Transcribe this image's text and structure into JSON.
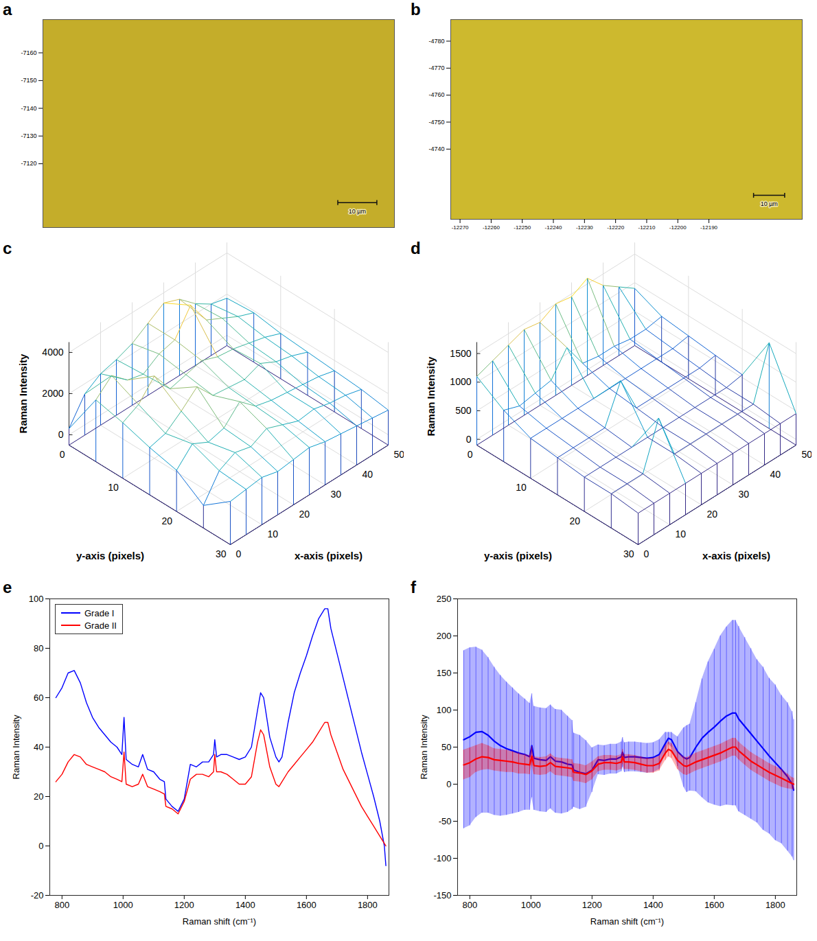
{
  "chart_data": [
    {
      "panel": "a",
      "type": "image",
      "color": "#c4ad2a",
      "xlim": [
        0,
        90
      ],
      "ylim": [
        -7172,
        -7097
      ],
      "yticks": [
        -7160,
        -7150,
        -7140,
        -7130,
        -7120
      ],
      "tick_labels": "y",
      "scale_bar": {
        "length": 10,
        "label": "10 µm"
      }
    },
    {
      "panel": "b",
      "type": "image",
      "color": "#cdb92e",
      "xlim": [
        -12273,
        -12160
      ],
      "ylim": [
        -4788,
        -4714
      ],
      "xticks": [
        -12270,
        -12260,
        -12250,
        -12240,
        -12230,
        -12220,
        -12210,
        -12200,
        -12190
      ],
      "yticks": [
        -4780,
        -4770,
        -4760,
        -4750,
        -4740
      ],
      "scale_bar": {
        "length": 10,
        "label": "10 µm"
      }
    },
    {
      "panel": "c",
      "type": "surface",
      "x": [
        0,
        5,
        10,
        15,
        20,
        25,
        30,
        35,
        40,
        45,
        50
      ],
      "y": [
        0,
        5,
        10,
        15,
        20,
        25,
        30
      ],
      "z": [
        [
          300,
          1500,
          2000,
          2200,
          2500,
          3000,
          3500,
          3200,
          2500,
          2000,
          1800
        ],
        [
          2500,
          3200,
          2500,
          2300,
          2800,
          3000,
          4200,
          3000,
          2600,
          2200,
          1900
        ],
        [
          2200,
          2600,
          3500,
          2400,
          2600,
          2800,
          2500,
          2400,
          2200,
          2000,
          1700
        ],
        [
          1800,
          2000,
          2600,
          3300,
          2400,
          2300,
          2200,
          2500,
          2100,
          1900,
          1600
        ],
        [
          1500,
          2300,
          1900,
          2100,
          2900,
          2200,
          2000,
          1900,
          1800,
          1700,
          1500
        ],
        [
          600,
          1800,
          2200,
          2000,
          2400,
          2100,
          1800,
          1900,
          1700,
          1600,
          1400
        ],
        [
          1600,
          1700,
          1800,
          1600,
          1700,
          1800,
          1600,
          1500,
          1400,
          1300,
          1200
        ]
      ],
      "xlim": [
        0,
        50
      ],
      "ylim": [
        0,
        30
      ],
      "zlim": [
        -500,
        4500
      ],
      "xticks": [
        0,
        10,
        20,
        30,
        40,
        50
      ],
      "yticks": [
        0,
        10,
        20,
        30
      ],
      "zticks": [
        0,
        2000,
        4000
      ],
      "x_label": "x-axis (pixels)",
      "y_label": "y-axis (pixels)",
      "z_label": "Raman Intensity"
    },
    {
      "panel": "d",
      "type": "surface",
      "x": [
        0,
        5,
        10,
        15,
        20,
        25,
        30,
        35,
        40,
        45,
        50
      ],
      "y": [
        0,
        5,
        10,
        15,
        20,
        25,
        30
      ],
      "z": [
        [
          1100,
          1200,
          1300,
          1400,
          1350,
          1500,
          1450,
          1600,
          1300,
          1100,
          900
        ],
        [
          800,
          700,
          750,
          800,
          1200,
          750,
          700,
          700,
          650,
          650,
          700
        ],
        [
          600,
          600,
          600,
          600,
          600,
          600,
          600,
          600,
          600,
          600,
          650
        ],
        [
          550,
          550,
          550,
          550,
          1200,
          550,
          550,
          550,
          550,
          550,
          600
        ],
        [
          500,
          500,
          500,
          500,
          500,
          500,
          500,
          500,
          500,
          500,
          550
        ],
        [
          500,
          500,
          500,
          1300,
          500,
          500,
          500,
          500,
          500,
          500,
          1400
        ],
        [
          450,
          450,
          450,
          450,
          450,
          450,
          450,
          450,
          450,
          450,
          450
        ]
      ],
      "xlim": [
        0,
        50
      ],
      "ylim": [
        0,
        30
      ],
      "zlim": [
        -100,
        1700
      ],
      "xticks": [
        0,
        10,
        20,
        30,
        40,
        50
      ],
      "yticks": [
        0,
        10,
        20,
        30
      ],
      "zticks": [
        0,
        500,
        1000,
        1500
      ],
      "x_label": "x-axis (pixels)",
      "y_label": "y-axis (pixels)",
      "z_label": "Raman Intensity"
    },
    {
      "panel": "e",
      "type": "line",
      "x": [
        780,
        800,
        820,
        840,
        860,
        880,
        900,
        920,
        940,
        960,
        980,
        996,
        1003,
        1010,
        1030,
        1050,
        1064,
        1080,
        1100,
        1120,
        1135,
        1140,
        1160,
        1180,
        1200,
        1220,
        1240,
        1260,
        1280,
        1296,
        1300,
        1306,
        1320,
        1340,
        1360,
        1380,
        1400,
        1420,
        1440,
        1450,
        1460,
        1480,
        1500,
        1510,
        1520,
        1540,
        1560,
        1580,
        1600,
        1620,
        1640,
        1660,
        1670,
        1680,
        1700,
        1720,
        1740,
        1760,
        1780,
        1800,
        1820,
        1840,
        1855,
        1860
      ],
      "series": [
        {
          "name": "Grade I",
          "color": "#0000ff",
          "values": [
            60,
            64,
            70,
            71,
            66,
            58,
            52,
            48,
            45,
            42,
            40,
            37,
            52,
            35,
            33,
            32,
            37,
            31,
            30,
            27,
            26,
            19,
            16,
            14,
            19,
            33,
            32,
            34,
            34,
            37,
            43,
            36,
            37,
            37,
            36,
            35,
            36,
            40,
            55,
            62,
            60,
            44,
            36,
            34,
            36,
            50,
            62,
            70,
            77,
            85,
            92,
            96,
            96,
            88,
            78,
            68,
            58,
            48,
            38,
            29,
            20,
            10,
            0,
            -8
          ]
        },
        {
          "name": "Grade II",
          "color": "#ff0000",
          "values": [
            26,
            29,
            34,
            37,
            36,
            33,
            32,
            31,
            30,
            28,
            27,
            26,
            38,
            25,
            24,
            25,
            29,
            24,
            23,
            22,
            21,
            16,
            15,
            13,
            18,
            27,
            29,
            29,
            28,
            30,
            37,
            30,
            30,
            29,
            27,
            25,
            25,
            28,
            42,
            47,
            45,
            32,
            25,
            24,
            26,
            30,
            33,
            36,
            39,
            42,
            46,
            50,
            50,
            45,
            38,
            31,
            26,
            21,
            16,
            12,
            8,
            4,
            1,
            0
          ]
        }
      ],
      "xlim": [
        760,
        1870
      ],
      "ylim": [
        -20,
        100
      ],
      "xticks": [
        800,
        1000,
        1200,
        1400,
        1600,
        1800
      ],
      "yticks": [
        -20,
        0,
        20,
        40,
        60,
        80,
        100
      ],
      "x_label": "Raman shift (cm⁻¹)",
      "y_label": "Raman Intensity",
      "legend": "top-left"
    },
    {
      "panel": "f",
      "type": "line",
      "x": [
        780,
        800,
        820,
        840,
        860,
        880,
        900,
        920,
        940,
        960,
        980,
        996,
        1003,
        1010,
        1030,
        1050,
        1064,
        1080,
        1100,
        1120,
        1135,
        1140,
        1160,
        1180,
        1200,
        1220,
        1240,
        1260,
        1280,
        1296,
        1300,
        1306,
        1320,
        1340,
        1360,
        1380,
        1400,
        1420,
        1440,
        1450,
        1460,
        1480,
        1500,
        1510,
        1520,
        1540,
        1560,
        1580,
        1600,
        1620,
        1640,
        1660,
        1670,
        1680,
        1700,
        1720,
        1740,
        1760,
        1780,
        1800,
        1820,
        1840,
        1855,
        1860
      ],
      "series": [
        {
          "color": "#0000ff",
          "values": [
            60,
            64,
            70,
            71,
            66,
            58,
            52,
            48,
            45,
            42,
            40,
            37,
            52,
            35,
            33,
            32,
            37,
            31,
            30,
            27,
            26,
            19,
            16,
            14,
            19,
            33,
            32,
            34,
            34,
            37,
            43,
            36,
            37,
            37,
            36,
            35,
            36,
            40,
            55,
            62,
            60,
            44,
            36,
            34,
            36,
            50,
            62,
            70,
            77,
            85,
            92,
            96,
            96,
            88,
            78,
            68,
            58,
            48,
            38,
            29,
            20,
            10,
            0,
            -8
          ],
          "error": [
            120,
            120,
            115,
            110,
            105,
            100,
            95,
            90,
            85,
            80,
            75,
            72,
            70,
            70,
            70,
            70,
            70,
            70,
            70,
            65,
            60,
            50,
            50,
            45,
            30,
            20,
            20,
            20,
            20,
            20,
            20,
            20,
            20,
            20,
            20,
            20,
            20,
            20,
            15,
            8,
            10,
            20,
            40,
            45,
            45,
            60,
            80,
            95,
            105,
            115,
            120,
            125,
            125,
            125,
            120,
            115,
            110,
            110,
            105,
            105,
            100,
            100,
            98,
            95
          ]
        },
        {
          "color": "#ff0000",
          "values": [
            26,
            29,
            34,
            37,
            36,
            33,
            32,
            31,
            30,
            28,
            27,
            26,
            38,
            25,
            24,
            25,
            29,
            24,
            23,
            22,
            21,
            16,
            15,
            13,
            18,
            27,
            29,
            29,
            28,
            30,
            37,
            30,
            30,
            29,
            27,
            25,
            25,
            28,
            42,
            47,
            45,
            32,
            25,
            24,
            26,
            30,
            33,
            36,
            39,
            42,
            46,
            50,
            50,
            45,
            38,
            31,
            26,
            21,
            16,
            12,
            8,
            4,
            1,
            0
          ],
          "error": [
            20,
            20,
            18,
            18,
            16,
            15,
            15,
            15,
            14,
            14,
            13,
            13,
            13,
            12,
            12,
            12,
            12,
            12,
            12,
            12,
            12,
            12,
            12,
            12,
            12,
            10,
            10,
            10,
            10,
            10,
            10,
            10,
            10,
            10,
            10,
            10,
            10,
            10,
            10,
            10,
            10,
            12,
            12,
            12,
            12,
            12,
            12,
            12,
            12,
            12,
            12,
            12,
            12,
            12,
            12,
            12,
            12,
            12,
            12,
            12,
            12,
            10,
            8,
            8
          ]
        }
      ],
      "xlim": [
        760,
        1870
      ],
      "ylim": [
        -150,
        250
      ],
      "xticks": [
        800,
        1000,
        1200,
        1400,
        1600,
        1800
      ],
      "yticks": [
        -150,
        -100,
        -50,
        0,
        50,
        100,
        150,
        200,
        250
      ],
      "x_label": "Raman shift (cm⁻¹)",
      "y_label": "Raman Intensity"
    }
  ]
}
